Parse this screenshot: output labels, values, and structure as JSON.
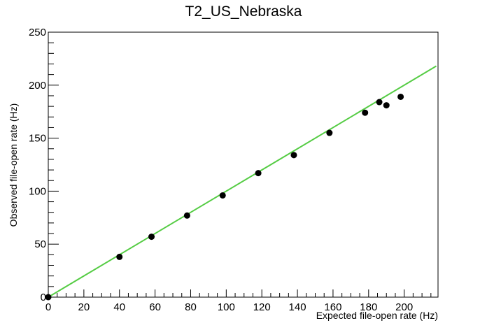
{
  "chart_data": {
    "type": "scatter",
    "title": "T2_US_Nebraska",
    "xlabel": "Expected file-open rate (Hz)",
    "ylabel": "Observed file-open rate (Hz)",
    "xlim": [
      0,
      219
    ],
    "ylim": [
      0,
      250
    ],
    "x_ticks": [
      0,
      20,
      40,
      60,
      80,
      100,
      120,
      140,
      160,
      180,
      200
    ],
    "y_ticks": [
      0,
      50,
      100,
      150,
      200,
      250
    ],
    "grid": false,
    "series": [
      {
        "type": "scatter",
        "color": "#000000",
        "points": [
          [
            0,
            0
          ],
          [
            40,
            38
          ],
          [
            58,
            57
          ],
          [
            78,
            77
          ],
          [
            98,
            96
          ],
          [
            118,
            117
          ],
          [
            138,
            134
          ],
          [
            158,
            155
          ],
          [
            178,
            174
          ],
          [
            186,
            184
          ],
          [
            190,
            181
          ],
          [
            198,
            189
          ]
        ]
      },
      {
        "type": "line",
        "color": "#55cc44",
        "points": [
          [
            0,
            0
          ],
          [
            218,
            218
          ]
        ]
      }
    ]
  }
}
